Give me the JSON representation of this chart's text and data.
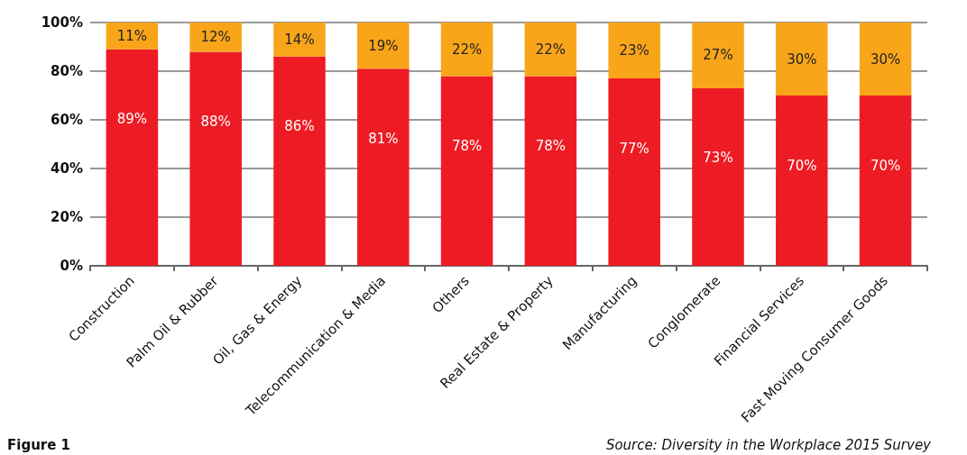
{
  "chart_data": {
    "type": "bar",
    "stacked": true,
    "categories": [
      "Construction",
      "Palm Oil & Rubber",
      "Oil, Gas & Energy",
      "Telecommunication & Media",
      "Others",
      "Real Estate & Property",
      "Manufacturing",
      "Conglomerate",
      "Financial Services",
      "Fast Moving Consumer Goods"
    ],
    "series": [
      {
        "color": "#ed1c24",
        "values": [
          89,
          88,
          86,
          81,
          78,
          78,
          77,
          73,
          70,
          70
        ],
        "value_labels": [
          "89%",
          "88%",
          "86%",
          "81%",
          "78%",
          "78%",
          "77%",
          "73%",
          "70%",
          "70%"
        ]
      },
      {
        "color": "#f9a51a",
        "values": [
          11,
          12,
          14,
          19,
          22,
          22,
          23,
          27,
          30,
          30
        ],
        "value_labels": [
          "11%",
          "12%",
          "14%",
          "19%",
          "22%",
          "22%",
          "23%",
          "27%",
          "30%",
          "30%"
        ]
      }
    ],
    "ylim": [
      0,
      100
    ],
    "yticks": [
      {
        "value": 0,
        "label": "0%"
      },
      {
        "value": 20,
        "label": "20%"
      },
      {
        "value": 40,
        "label": "40%"
      },
      {
        "value": 60,
        "label": "60%"
      },
      {
        "value": 80,
        "label": "80%"
      },
      {
        "value": 100,
        "label": "100%"
      }
    ],
    "grid": "y",
    "annotations": [
      "Figure 1",
      "Source: Diversity in the Workplace 2015 Survey"
    ]
  }
}
